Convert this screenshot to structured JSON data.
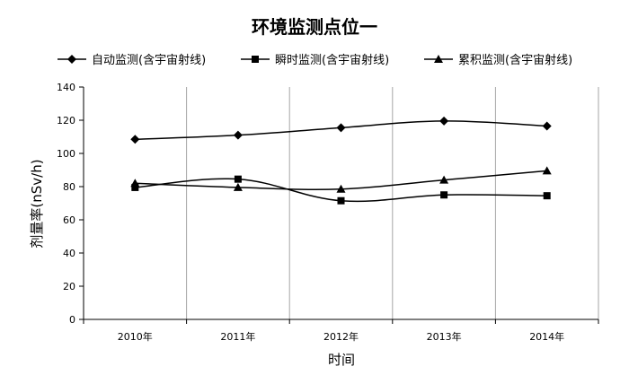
{
  "chart_data": {
    "type": "line",
    "title": "环境监测点位一",
    "xlabel": "时间",
    "ylabel": "剂量率(nSv/h)",
    "categories": [
      "2010年",
      "2011年",
      "2012年",
      "2013年",
      "2014年"
    ],
    "ylim": [
      0,
      140
    ],
    "yticks": [
      0,
      20,
      40,
      60,
      80,
      100,
      120,
      140
    ],
    "grid": "vertical",
    "legend_position": "top",
    "series": [
      {
        "name": "自动监测(含宇宙射线)",
        "marker": "diamond",
        "values": [
          108.5,
          111,
          115.5,
          119.5,
          116.5
        ]
      },
      {
        "name": "瞬时监测(含宇宙射线)",
        "marker": "square",
        "values": [
          79.5,
          84.5,
          71.5,
          75,
          74.5
        ]
      },
      {
        "name": "累积监测(含宇宙射线)",
        "marker": "triangle",
        "values": [
          82,
          79.5,
          78.5,
          84,
          89.5
        ]
      }
    ]
  }
}
